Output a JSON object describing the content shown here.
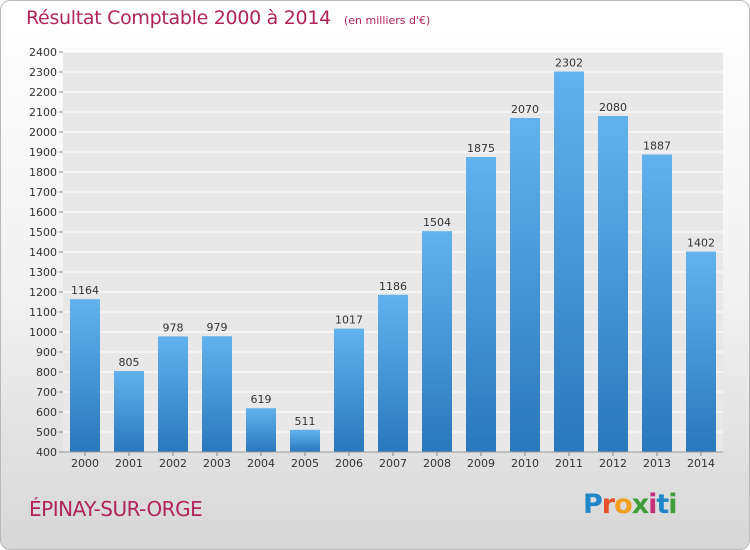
{
  "header": {
    "title": "Résultat Comptable 2000 à 2014",
    "subtitle": "(en milliers d'€)"
  },
  "footer": {
    "city": "ÉPINAY-SUR-ORGE",
    "brand": "Proxiti"
  },
  "colors": {
    "title": "#b0245b",
    "bar_top": "#62b2ee",
    "bar_bottom": "#2a78bc",
    "label": "#333333"
  },
  "chart_data": {
    "type": "bar",
    "title": "Résultat Comptable 2000 à 2014",
    "subtitle": "(en milliers d'€)",
    "xlabel": "",
    "ylabel": "",
    "categories": [
      "2000",
      "2001",
      "2002",
      "2003",
      "2004",
      "2005",
      "2006",
      "2007",
      "2008",
      "2009",
      "2010",
      "2011",
      "2012",
      "2013",
      "2014"
    ],
    "values": [
      1164,
      805,
      978,
      979,
      619,
      511,
      1017,
      1186,
      1504,
      1875,
      2070,
      2302,
      2080,
      1887,
      1402
    ],
    "ylim": [
      400,
      2400
    ],
    "yticks": [
      400,
      500,
      600,
      700,
      800,
      900,
      1000,
      1100,
      1200,
      1300,
      1400,
      1500,
      1600,
      1700,
      1800,
      1900,
      2000,
      2100,
      2200,
      2300,
      2400
    ],
    "grid": true,
    "legend": "none"
  }
}
